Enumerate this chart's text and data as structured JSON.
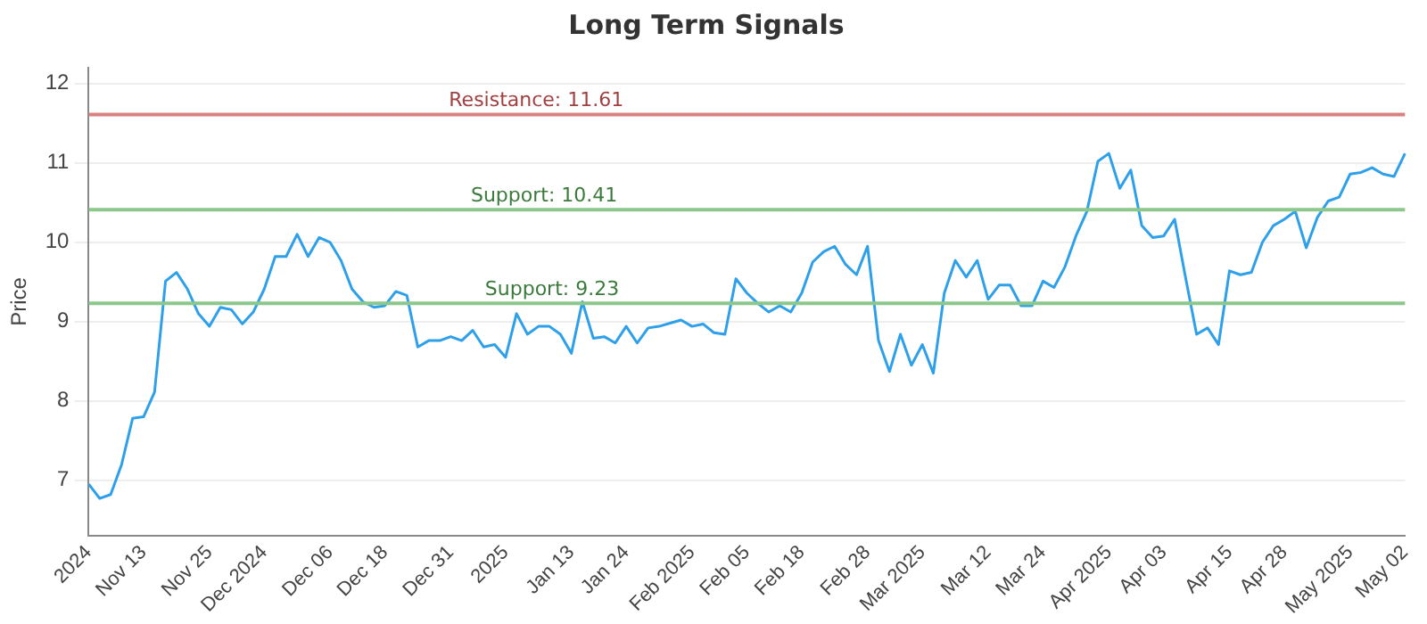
{
  "chart_data": {
    "type": "line",
    "title": "Long Term Signals",
    "ylabel": "Price",
    "categories": [
      "2024",
      null,
      null,
      null,
      null,
      "Nov 13",
      null,
      null,
      null,
      null,
      null,
      "Nov 25",
      null,
      null,
      null,
      null,
      "Dec 2024",
      null,
      null,
      null,
      null,
      null,
      "Dec 06",
      null,
      null,
      null,
      null,
      "Dec 18",
      null,
      null,
      null,
      null,
      null,
      "Dec 31",
      null,
      null,
      null,
      null,
      "2025",
      null,
      null,
      null,
      null,
      null,
      "Jan 13",
      null,
      null,
      null,
      null,
      "Jan 24",
      null,
      null,
      null,
      null,
      null,
      "Feb 2025",
      null,
      null,
      null,
      null,
      "Feb 05",
      null,
      null,
      null,
      null,
      "Feb 18",
      null,
      null,
      null,
      null,
      null,
      "Feb 28",
      null,
      null,
      null,
      null,
      "Mar 2025",
      null,
      null,
      null,
      null,
      null,
      "Mar 12",
      null,
      null,
      null,
      null,
      "Mar 24",
      null,
      null,
      null,
      null,
      null,
      "Apr 2025",
      null,
      null,
      null,
      null,
      "Apr 03",
      null,
      null,
      null,
      null,
      null,
      "Apr 15",
      null,
      null,
      null,
      null,
      "Apr 28",
      null,
      null,
      null,
      null,
      null,
      "May 2025",
      null,
      null,
      null,
      null,
      "May 02"
    ],
    "series": [
      {
        "color": "#2ea0ea",
        "values": [
          6.95,
          6.77,
          6.82,
          7.2,
          7.78,
          7.8,
          8.11,
          9.51,
          9.62,
          9.41,
          9.1,
          8.94,
          9.18,
          9.15,
          8.97,
          9.12,
          9.41,
          9.82,
          9.82,
          10.1,
          9.82,
          10.06,
          10.0,
          9.77,
          9.41,
          9.25,
          9.18,
          9.2,
          9.38,
          9.33,
          8.68,
          8.76,
          8.76,
          8.81,
          8.76,
          8.89,
          8.68,
          8.71,
          8.55,
          9.1,
          8.84,
          8.94,
          8.94,
          8.84,
          8.6,
          9.25,
          8.79,
          8.81,
          8.73,
          8.94,
          8.73,
          8.92,
          8.94,
          8.98,
          9.02,
          8.94,
          8.97,
          8.86,
          8.84,
          9.54,
          9.36,
          9.23,
          9.12,
          9.2,
          9.12,
          9.36,
          9.75,
          9.88,
          9.95,
          9.72,
          9.59,
          9.95,
          8.76,
          8.37,
          8.84,
          8.45,
          8.71,
          8.35,
          9.36,
          9.77,
          9.56,
          9.77,
          9.28,
          9.46,
          9.46,
          9.2,
          9.2,
          9.51,
          9.43,
          9.69,
          10.08,
          10.39,
          11.02,
          11.12,
          10.68,
          10.91,
          10.21,
          10.06,
          10.08,
          10.29,
          9.55,
          8.84,
          8.92,
          8.71,
          9.64,
          9.59,
          9.62,
          10.0,
          10.21,
          10.29,
          10.39,
          9.93,
          10.31,
          10.52,
          10.57,
          10.86,
          10.88,
          10.94,
          10.86,
          10.83,
          11.12
        ]
      }
    ],
    "ylim": [
      6.3,
      12.2
    ],
    "yticks": [
      7,
      8,
      9,
      10,
      11,
      12
    ],
    "grid": "y",
    "legend": false,
    "marker": "none",
    "line_style": "solid",
    "ref_lines": [
      {
        "axis": "y",
        "value": 11.61,
        "label": "Resistance: 11.61",
        "color": "#d98080"
      },
      {
        "axis": "y",
        "value": 10.41,
        "label": "Support: 10.41",
        "color": "#8cc78c"
      },
      {
        "axis": "y",
        "value": 9.23,
        "label": "Support: 9.23",
        "color": "#8cc78c"
      }
    ]
  }
}
